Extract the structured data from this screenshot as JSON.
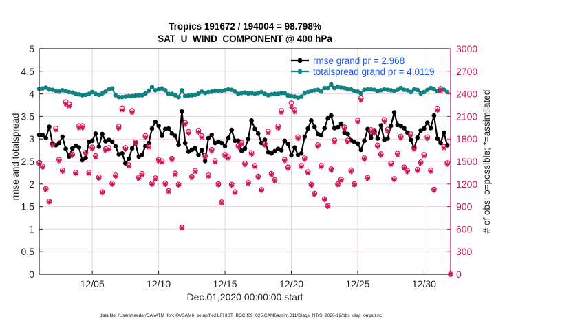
{
  "chart_data": {
    "type": "line",
    "title": "Tropics 191672 / 194004 = 98.798%",
    "subtitle": "SAT_U_WIND_COMPONENT @ 400 hPa",
    "xlabel": "Dec.01,2020 00:00:00 start",
    "ylabel": "rmse and totalspread",
    "y2label": "# of obs: o=possible; *=assimilated",
    "xlim_days": [
      0,
      31
    ],
    "ylim": [
      0,
      5
    ],
    "y2lim": [
      0,
      3000
    ],
    "grid": true,
    "legend_position": "top-right",
    "x_start_days": 0,
    "x_step_days": 0.25,
    "xticks": [
      {
        "label": "12/05",
        "day": 4
      },
      {
        "label": "12/10",
        "day": 9
      },
      {
        "label": "12/15",
        "day": 14
      },
      {
        "label": "12/20",
        "day": 19
      },
      {
        "label": "12/25",
        "day": 24
      },
      {
        "label": "12/30",
        "day": 29
      }
    ],
    "yticks": [
      "0",
      "0.5",
      "1",
      "1.5",
      "2",
      "2.5",
      "3",
      "3.5",
      "4",
      "4.5",
      "5"
    ],
    "y2ticks": [
      "0",
      "300",
      "600",
      "900",
      "1200",
      "1500",
      "1800",
      "2100",
      "2400",
      "2700",
      "3000"
    ],
    "legend": [
      {
        "label": "rmse grand pr = 2.968",
        "series": "rmse"
      },
      {
        "label": "totalspread grand pr = 4.0119",
        "series": "totalspread"
      }
    ],
    "series": [
      {
        "name": "rmse",
        "axis": "left",
        "values": [
          3.09,
          3.09,
          3.02,
          3.27,
          2.9,
          2.86,
          2.91,
          3.05,
          2.78,
          2.61,
          2.79,
          2.85,
          2.81,
          2.53,
          2.58,
          2.94,
          2.96,
          3.12,
          2.83,
          3.11,
          2.95,
          2.98,
          2.94,
          2.84,
          2.66,
          2.68,
          2.46,
          2.56,
          2.79,
          2.91,
          2.61,
          2.65,
          2.84,
          2.91,
          3.23,
          3.38,
          3.29,
          3.07,
          3.22,
          3.23,
          3.12,
          3.07,
          2.87,
          3.61,
          2.91,
          2.72,
          2.76,
          2.8,
          2.65,
          2.75,
          2.51,
          3.02,
          3.09,
          2.91,
          2.94,
          2.91,
          2.84,
          3.02,
          3.2,
          2.96,
          2.96,
          2.74,
          2.79,
          3.0,
          3.41,
          3.22,
          3.12,
          2.91,
          2.98,
          2.71,
          2.68,
          2.73,
          2.78,
          2.75,
          2.96,
          2.89,
          2.64,
          2.81,
          2.65,
          2.68,
          3.05,
          3.23,
          3.41,
          3.27,
          3.11,
          3.08,
          3.24,
          3.46,
          3.52,
          3.24,
          3.26,
          3.34,
          3.14,
          3.11,
          2.97,
          2.93,
          2.9,
          2.76,
          2.96,
          3.22,
          3.03,
          3.19,
          3.01,
          3.3,
          2.98,
          3.01,
          3.29,
          3.59,
          3.31,
          3.29,
          3.24,
          3.14,
          2.98,
          2.8,
          3.03,
          3.19,
          3.23,
          3.36,
          3.24,
          3.52,
          3.01,
          2.91,
          3.14,
          2.86
        ]
      },
      {
        "name": "totalspread",
        "axis": "left",
        "values": [
          4.11,
          4.12,
          4.14,
          4.1,
          4.09,
          4.07,
          4.05,
          4.08,
          4.06,
          4.04,
          4.03,
          4.0,
          3.99,
          3.97,
          3.98,
          4.0,
          4.04,
          4.0,
          3.98,
          4.01,
          4.05,
          4.1,
          4.12,
          3.97,
          3.93,
          3.93,
          3.94,
          3.95,
          3.95,
          3.96,
          3.97,
          3.97,
          4.01,
          4.07,
          4.15,
          4.08,
          4.1,
          4.12,
          4.08,
          4.0,
          4.0,
          3.97,
          3.93,
          4.08,
          3.95,
          3.96,
          3.97,
          3.98,
          4.01,
          4.05,
          4.02,
          4.04,
          4.05,
          4.07,
          4.07,
          4.07,
          4.08,
          4.1,
          4.09,
          4.05,
          4.0,
          4.02,
          4.03,
          4.01,
          4.02,
          4.0,
          4.02,
          4.04,
          4.0,
          3.97,
          3.99,
          4.0,
          4.0,
          4.02,
          4.02,
          3.96,
          3.95,
          3.94,
          3.92,
          3.94,
          4.02,
          4.04,
          4.06,
          4.08,
          4.09,
          4.05,
          4.13,
          4.13,
          4.21,
          4.13,
          4.16,
          4.14,
          4.13,
          4.1,
          4.1,
          4.06,
          4.05,
          4.01,
          4.09,
          4.1,
          4.1,
          4.09,
          4.06,
          4.08,
          4.1,
          4.09,
          4.08,
          4.06,
          4.09,
          4.13,
          4.09,
          4.08,
          4.04,
          4.1,
          4.09,
          4.01,
          4.04,
          4.09,
          4.13,
          4.1,
          4.06,
          4.09,
          4.09,
          4.04
        ]
      },
      {
        "name": "obs_possible",
        "axis": "right",
        "marker": "o",
        "values": [
          1484,
          1439,
          1140,
          972,
          1738,
          1942,
          1525,
          1384,
          2293,
          2262,
          1598,
          1354,
          1973,
          1973,
          1622,
          1354,
          1689,
          1576,
          1292,
          1095,
          1667,
          1683,
          1210,
          1317,
          1966,
          2210,
          1683,
          1454,
          2177,
          1759,
          1287,
          1338,
          1841,
          1708,
          1210,
          1280,
          1525,
          1506,
          1210,
          1110,
          1540,
          1342,
          1195,
          622,
          2018,
          1896,
          1302,
          1378,
          1912,
          1841,
          1576,
          1317,
          1658,
          1509,
          1201,
          960,
          1591,
          1561,
          1195,
          1095,
          1713,
          1750,
          1475,
          1219,
          1616,
          1445,
          1302,
          1125,
          1735,
          1902,
          1338,
          1256,
          1969,
          2177,
          1525,
          1424,
          2277,
          2186,
          1826,
          1445,
          1546,
          1363,
          1195,
          1073,
          1720,
          1445,
          1003,
          912,
          1399,
          1781,
          1201,
          1262,
          1957,
          1781,
          1384,
          1201,
          2049,
          2344,
          1546,
          1287,
          1922,
          1899,
          1716,
          1600,
          2056,
          1927,
          1475,
          1271,
          1607,
          1835,
          1424,
          1378,
          1866,
          1683,
          1393,
          1491,
          1591,
          1826,
          1384,
          1128,
          2207,
          2469,
          1698,
          1479,
          0
        ]
      },
      {
        "name": "obs_assimilated",
        "axis": "right",
        "marker": "*",
        "values": [
          1466,
          1422,
          1126,
          960,
          1717,
          1919,
          1507,
          1367,
          2265,
          2235,
          1579,
          1338,
          1949,
          1949,
          1603,
          1338,
          1669,
          1557,
          1276,
          1082,
          1647,
          1663,
          1195,
          1301,
          1942,
          2183,
          1663,
          1437,
          2151,
          1738,
          1272,
          1322,
          1819,
          1688,
          1195,
          1265,
          1507,
          1488,
          1195,
          1097,
          1522,
          1326,
          1181,
          615,
          1994,
          1873,
          1286,
          1361,
          1889,
          1819,
          1557,
          1301,
          1638,
          1491,
          1187,
          948,
          1572,
          1542,
          1181,
          1082,
          1692,
          1729,
          1457,
          1204,
          1597,
          1428,
          1286,
          1112,
          1714,
          1879,
          1322,
          1241,
          1945,
          2151,
          1507,
          1407,
          2225,
          2160,
          1804,
          1428,
          1527,
          1347,
          1181,
          1060,
          1699,
          1428,
          991,
          901,
          1382,
          1760,
          1187,
          1247,
          1933,
          1760,
          1367,
          1187,
          2024,
          2316,
          1527,
          1272,
          1899,
          1876,
          1695,
          1581,
          2031,
          1904,
          1457,
          1256,
          1588,
          1813,
          1407,
          1361,
          1844,
          1663,
          1376,
          1473,
          1572,
          1804,
          1367,
          1114,
          2181,
          2439,
          1678,
          1461,
          0
        ]
      }
    ],
    "colors": {
      "rmse": "#000000",
      "totalspread": "#0f8282",
      "obs": "#d4145a",
      "right_axis": "#c8145a",
      "legend_text": "#1a55e6",
      "hgrid": "#f3d2de",
      "vgrid": "#dadada"
    }
  },
  "footer": {
    "data_file": "data file: /Users/raeder/DAI/ATM_forcXX/CAM6_setup/f.e21.FHIST_BGC.f09_025.CAM6assim.011/Diags_NTrS_2020-12/obs_diag_output.nc"
  }
}
